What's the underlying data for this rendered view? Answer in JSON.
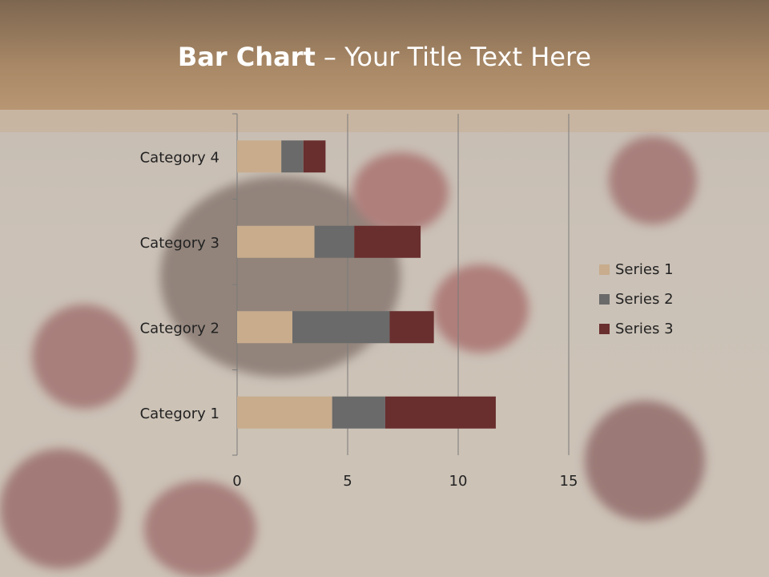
{
  "title": {
    "bold": "Bar Chart",
    "rest": " – Your Title Text Here"
  },
  "chart_data": {
    "type": "bar",
    "orientation": "horizontal",
    "stacked": true,
    "categories": [
      "Category 1",
      "Category 2",
      "Category 3",
      "Category 4"
    ],
    "series": [
      {
        "name": "Series 1",
        "values": [
          4.3,
          2.5,
          3.5,
          2.0
        ],
        "color": "#c8ac8c"
      },
      {
        "name": "Series 2",
        "values": [
          2.4,
          4.4,
          1.8,
          1.0
        ],
        "color": "#6a6a6a"
      },
      {
        "name": "Series 3",
        "values": [
          5.0,
          2.0,
          3.0,
          1.0
        ],
        "color": "#692e2e"
      }
    ],
    "xlim": [
      0,
      15
    ],
    "xticks": [
      "0",
      "5",
      "10",
      "15"
    ],
    "grid": "vertical major",
    "legend": "right"
  }
}
